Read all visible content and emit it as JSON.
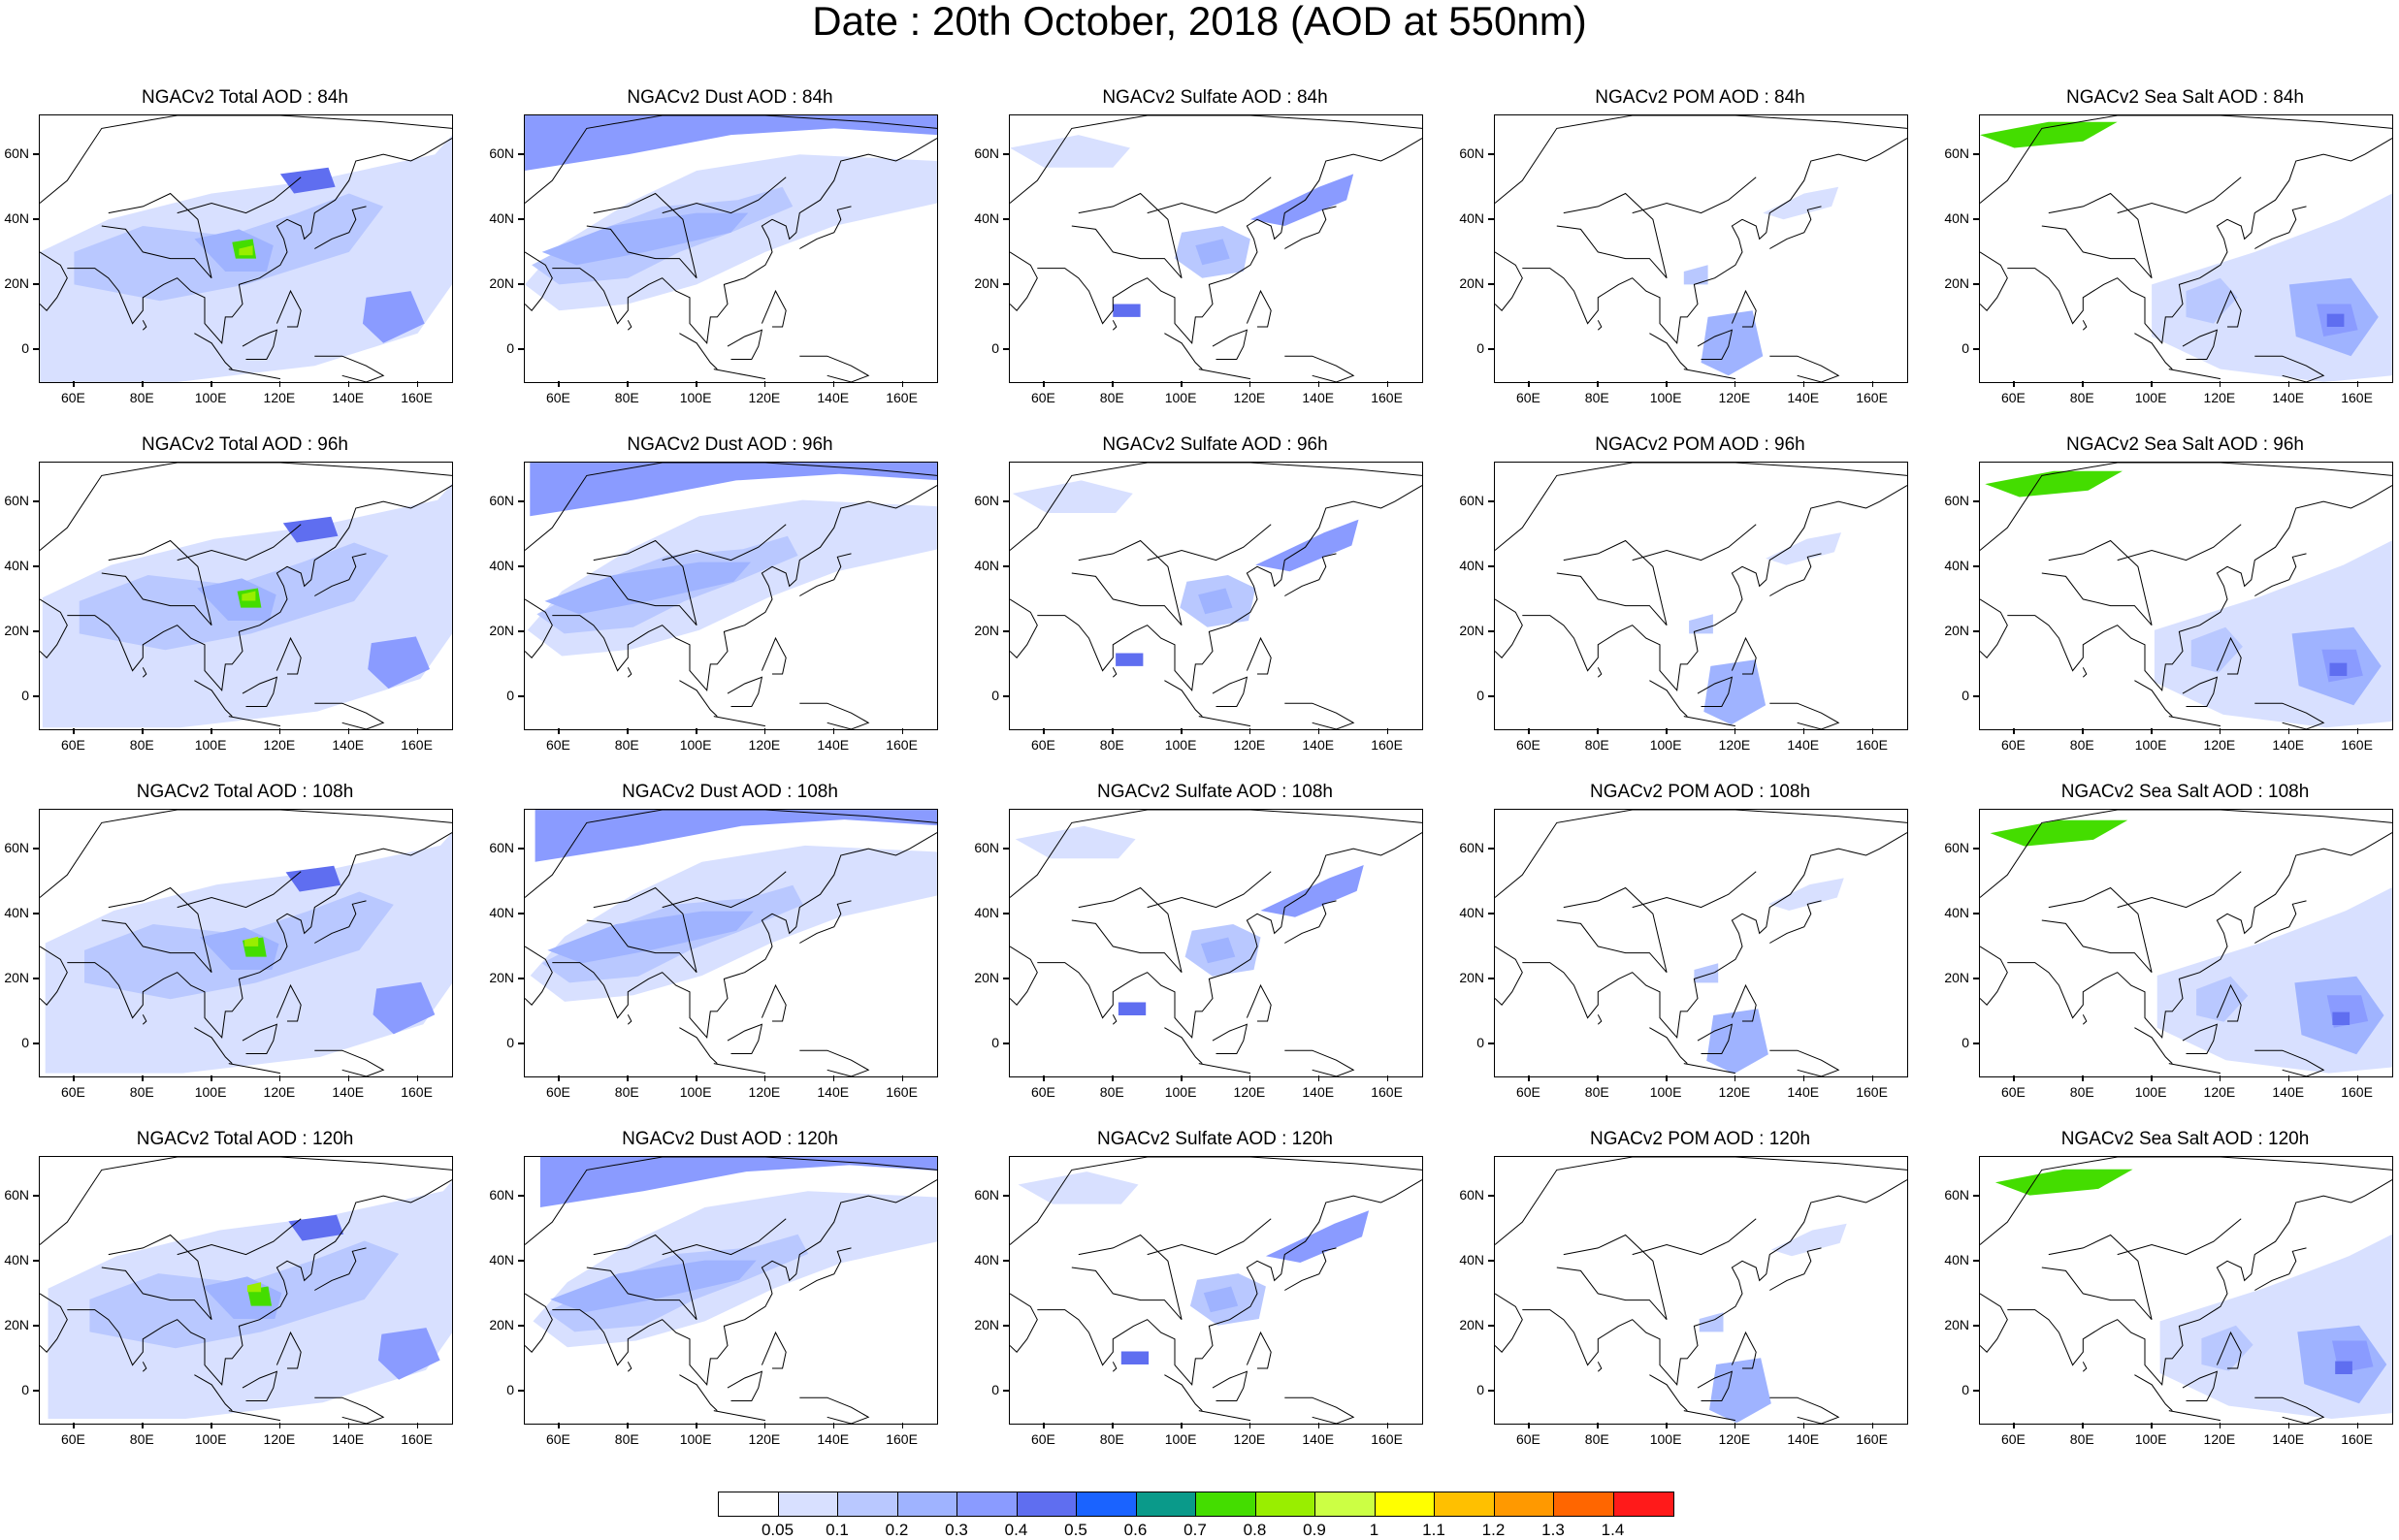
{
  "title": "Date : 20th October, 2018 (AOD at 550nm)",
  "lat_labels": [
    "60N",
    "40N",
    "20N",
    "0"
  ],
  "lon_labels": [
    "60E",
    "80E",
    "100E",
    "120E",
    "140E",
    "160E"
  ],
  "panels": [
    [
      {
        "title": "NGACv2 Total AOD : 84h",
        "species": "total",
        "hour": 84
      },
      {
        "title": "NGACv2 Dust AOD : 84h",
        "species": "dust",
        "hour": 84
      },
      {
        "title": "NGACv2 Sulfate AOD : 84h",
        "species": "sulfate",
        "hour": 84
      },
      {
        "title": "NGACv2 POM AOD : 84h",
        "species": "pom",
        "hour": 84
      },
      {
        "title": "NGACv2 Sea Salt AOD : 84h",
        "species": "seasalt",
        "hour": 84
      }
    ],
    [
      {
        "title": "NGACv2 Total AOD : 96h",
        "species": "total",
        "hour": 96
      },
      {
        "title": "NGACv2 Dust AOD : 96h",
        "species": "dust",
        "hour": 96
      },
      {
        "title": "NGACv2 Sulfate AOD : 96h",
        "species": "sulfate",
        "hour": 96
      },
      {
        "title": "NGACv2 POM AOD : 96h",
        "species": "pom",
        "hour": 96
      },
      {
        "title": "NGACv2 Sea Salt AOD : 96h",
        "species": "seasalt",
        "hour": 96
      }
    ],
    [
      {
        "title": "NGACv2 Total AOD : 108h",
        "species": "total",
        "hour": 108
      },
      {
        "title": "NGACv2 Dust AOD : 108h",
        "species": "dust",
        "hour": 108
      },
      {
        "title": "NGACv2 Sulfate AOD : 108h",
        "species": "sulfate",
        "hour": 108
      },
      {
        "title": "NGACv2 POM AOD : 108h",
        "species": "pom",
        "hour": 108
      },
      {
        "title": "NGACv2 Sea Salt AOD : 108h",
        "species": "seasalt",
        "hour": 108
      }
    ],
    [
      {
        "title": "NGACv2 Total AOD : 120h",
        "species": "total",
        "hour": 120
      },
      {
        "title": "NGACv2 Dust AOD : 120h",
        "species": "dust",
        "hour": 120
      },
      {
        "title": "NGACv2 Sulfate AOD : 120h",
        "species": "sulfate",
        "hour": 120
      },
      {
        "title": "NGACv2 POM AOD : 120h",
        "species": "pom",
        "hour": 120
      },
      {
        "title": "NGACv2 Sea Salt  AOD : 120h",
        "species": "seasalt",
        "hour": 120
      }
    ]
  ],
  "colorbar": {
    "labels": [
      "0.05",
      "0.1",
      "0.2",
      "0.3",
      "0.4",
      "0.5",
      "0.6",
      "0.7",
      "0.8",
      "0.9",
      "1",
      "1.1",
      "1.2",
      "1.3",
      "1.4"
    ],
    "colors": [
      "#ffffff",
      "#d8e0ff",
      "#b9c8ff",
      "#9fb3ff",
      "#8a9bff",
      "#5f6ef0",
      "#1a63ff",
      "#0a9a8a",
      "#44dd00",
      "#99ee00",
      "#ccff44",
      "#ffff00",
      "#ffc000",
      "#ff9900",
      "#ff6600",
      "#ff1a1a"
    ]
  }
}
